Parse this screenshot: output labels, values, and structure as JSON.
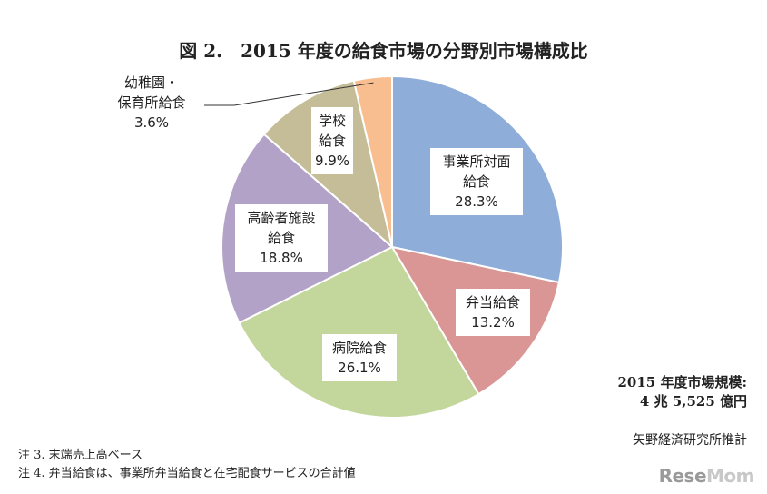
{
  "chart_data": {
    "type": "pie",
    "title": "図 2.　2015 年度の給食市場の分野別市場構成比",
    "slices": [
      {
        "label_lines": [
          "事業所対面",
          "給食"
        ],
        "value": 28.3,
        "value_text": "28.3%",
        "color": "#8eadd9"
      },
      {
        "label_lines": [
          "弁当給食"
        ],
        "value": 13.2,
        "value_text": "13.2%",
        "color": "#d99694"
      },
      {
        "label_lines": [
          "病院給食"
        ],
        "value": 26.1,
        "value_text": "26.1%",
        "color": "#c3d69b"
      },
      {
        "label_lines": [
          "高齢者施設",
          "給食"
        ],
        "value": 18.8,
        "value_text": "18.8%",
        "color": "#b3a2c7"
      },
      {
        "label_lines": [
          "学校",
          "給食"
        ],
        "value": 9.9,
        "value_text": "9.9%",
        "color": "#c4bd97"
      },
      {
        "label_lines": [
          "幼稚園・",
          "保育所給食"
        ],
        "value": 3.6,
        "value_text": "3.6%",
        "color": "#f9be8f"
      }
    ]
  },
  "summary": {
    "line1": "2015 年度市場規模:",
    "line2": "4 兆 5,525 億円"
  },
  "source": "矢野経済研究所推計",
  "notes": [
    "注 3.  末端売上高ベース",
    "注 4.  弁当給食は、事業所弁当給食と在宅配食サービスの合計値"
  ],
  "logo": {
    "part1": "Rese",
    "part2": "Mom"
  }
}
